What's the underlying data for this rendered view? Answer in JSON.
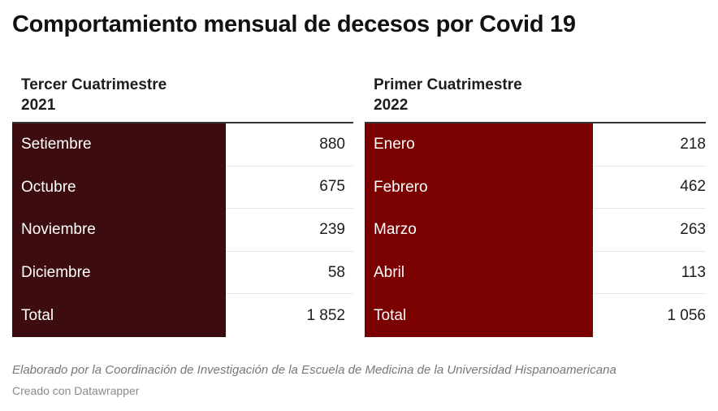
{
  "title": "Comportamiento mensual de decesos por Covid 19",
  "chart_data": {
    "type": "table",
    "tables": [
      {
        "header_line1": "Tercer Cuatrimestre",
        "header_line2": "2021",
        "rows": [
          {
            "month": "Setiembre",
            "value": "880"
          },
          {
            "month": "Octubre",
            "value": "675"
          },
          {
            "month": "Noviembre",
            "value": "239"
          },
          {
            "month": "Diciembre",
            "value": "58"
          },
          {
            "month": "Total",
            "value": "1 852"
          }
        ],
        "color": "#3d0c0e"
      },
      {
        "header_line1": "Primer Cuatrimestre",
        "header_line2": "2022",
        "rows": [
          {
            "month": "Enero",
            "value": "218"
          },
          {
            "month": "Febrero",
            "value": "462"
          },
          {
            "month": "Marzo",
            "value": "263"
          },
          {
            "month": "Abril",
            "value": "113"
          },
          {
            "month": "Total",
            "value": "1 056"
          }
        ],
        "color": "#7b0000"
      }
    ]
  },
  "note": "Elaborado por la Coordinación de Investigación de la Escuela de Medicina de la Universidad Hispanoamericana",
  "credit": "Creado con Datawrapper"
}
